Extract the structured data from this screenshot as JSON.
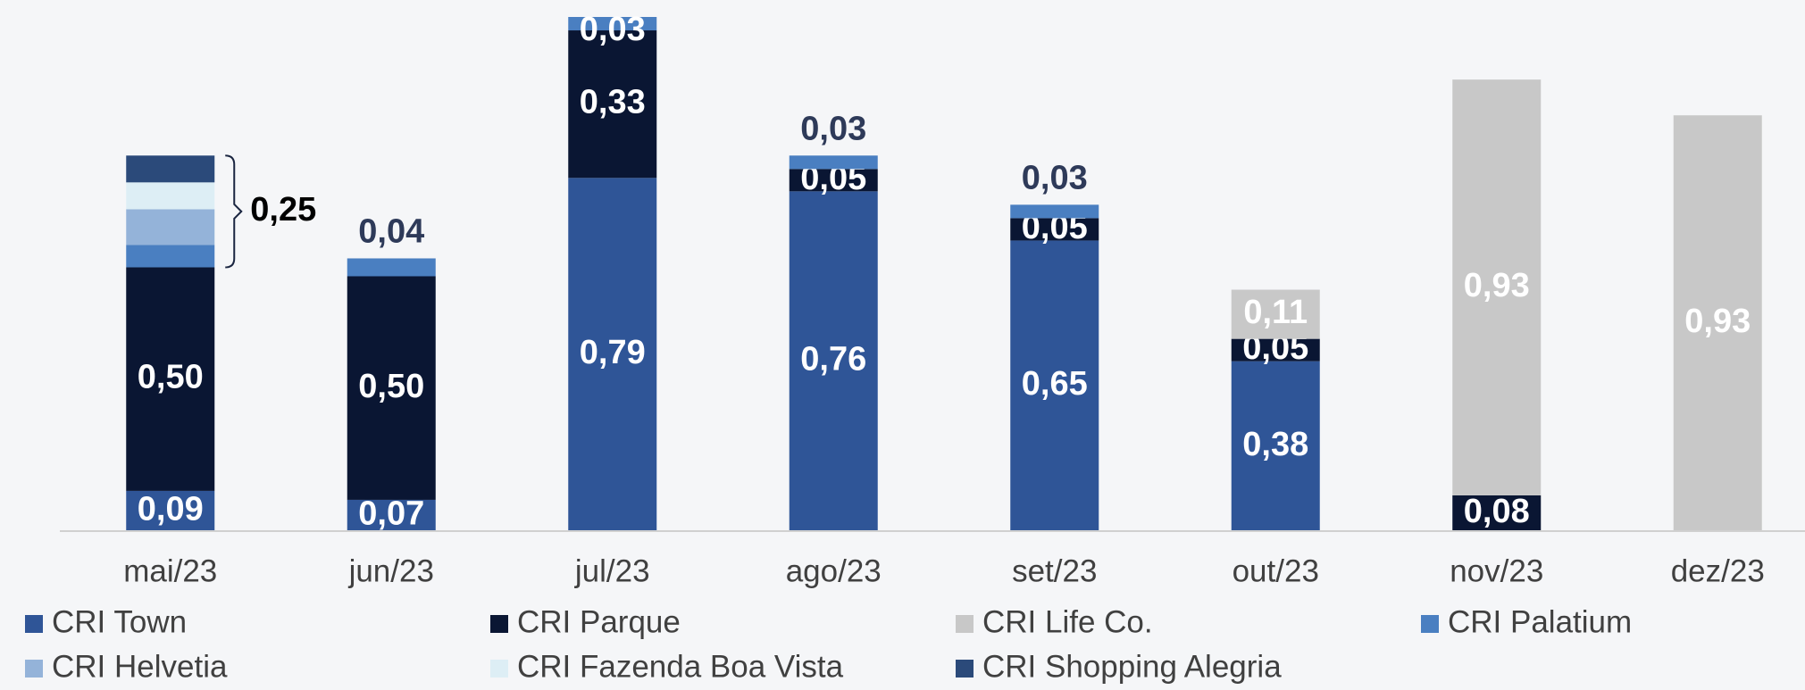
{
  "chart_data": {
    "type": "stacked_bar",
    "categories": [
      "mai/23",
      "jun/23",
      "jul/23",
      "ago/23",
      "set/23",
      "out/23",
      "nov/23",
      "dez/23"
    ],
    "ylim": [
      0,
      1.15
    ],
    "legend": "bottom",
    "series": [
      {
        "name": "CRI Town",
        "color": "#2f5597",
        "values": [
          0.09,
          0.07,
          0.79,
          0.76,
          0.65,
          0.38,
          0,
          0
        ],
        "value_labels": [
          "0,09",
          "0,07",
          "0,79",
          "0,76",
          "0,65",
          "0,38",
          null,
          null
        ]
      },
      {
        "name": "CRI Parque",
        "color": "#0a1633",
        "values": [
          0.5,
          0.5,
          0.33,
          0.05,
          0.05,
          0.05,
          0.08,
          0
        ],
        "value_labels": [
          "0,50",
          "0,50",
          "0,33",
          "0,05",
          "0,05",
          "0,05",
          "0,08",
          null
        ]
      },
      {
        "name": "CRI Life Co.",
        "color": "#c8c8c8",
        "values": [
          0,
          0,
          0,
          0,
          0,
          0.11,
          0.93,
          0.93
        ],
        "value_labels": [
          null,
          null,
          null,
          null,
          null,
          "0,11",
          "0,93",
          "0,93"
        ]
      },
      {
        "name": "CRI Palatium",
        "color": "#4a7fc1",
        "values": [
          0.05,
          0.04,
          0.03,
          0.03,
          0.03,
          0,
          0,
          0
        ],
        "value_labels": [
          null,
          "0,04",
          "0,03",
          "0,03",
          "0,03",
          null,
          null,
          null
        ]
      },
      {
        "name": "CRI Helvetia",
        "color": "#94b3d9",
        "values": [
          0.08,
          0,
          0,
          0,
          0,
          0,
          0,
          0
        ],
        "value_labels": [
          null,
          null,
          null,
          null,
          null,
          null,
          null,
          null
        ]
      },
      {
        "name": "CRI Fazenda Boa Vista",
        "color": "#ddeef5",
        "values": [
          0.06,
          0,
          0,
          0,
          0,
          0,
          0,
          0
        ],
        "value_labels": [
          null,
          null,
          null,
          null,
          null,
          null,
          null,
          null
        ]
      },
      {
        "name": "CRI Shopping Alegria",
        "color": "#2b4a7a",
        "values": [
          0.06,
          0,
          0,
          0,
          0,
          0,
          0,
          0
        ],
        "value_labels": [
          null,
          null,
          null,
          null,
          null,
          null,
          null,
          null
        ]
      }
    ],
    "annotations": [
      {
        "text": "0,25"
      }
    ]
  }
}
